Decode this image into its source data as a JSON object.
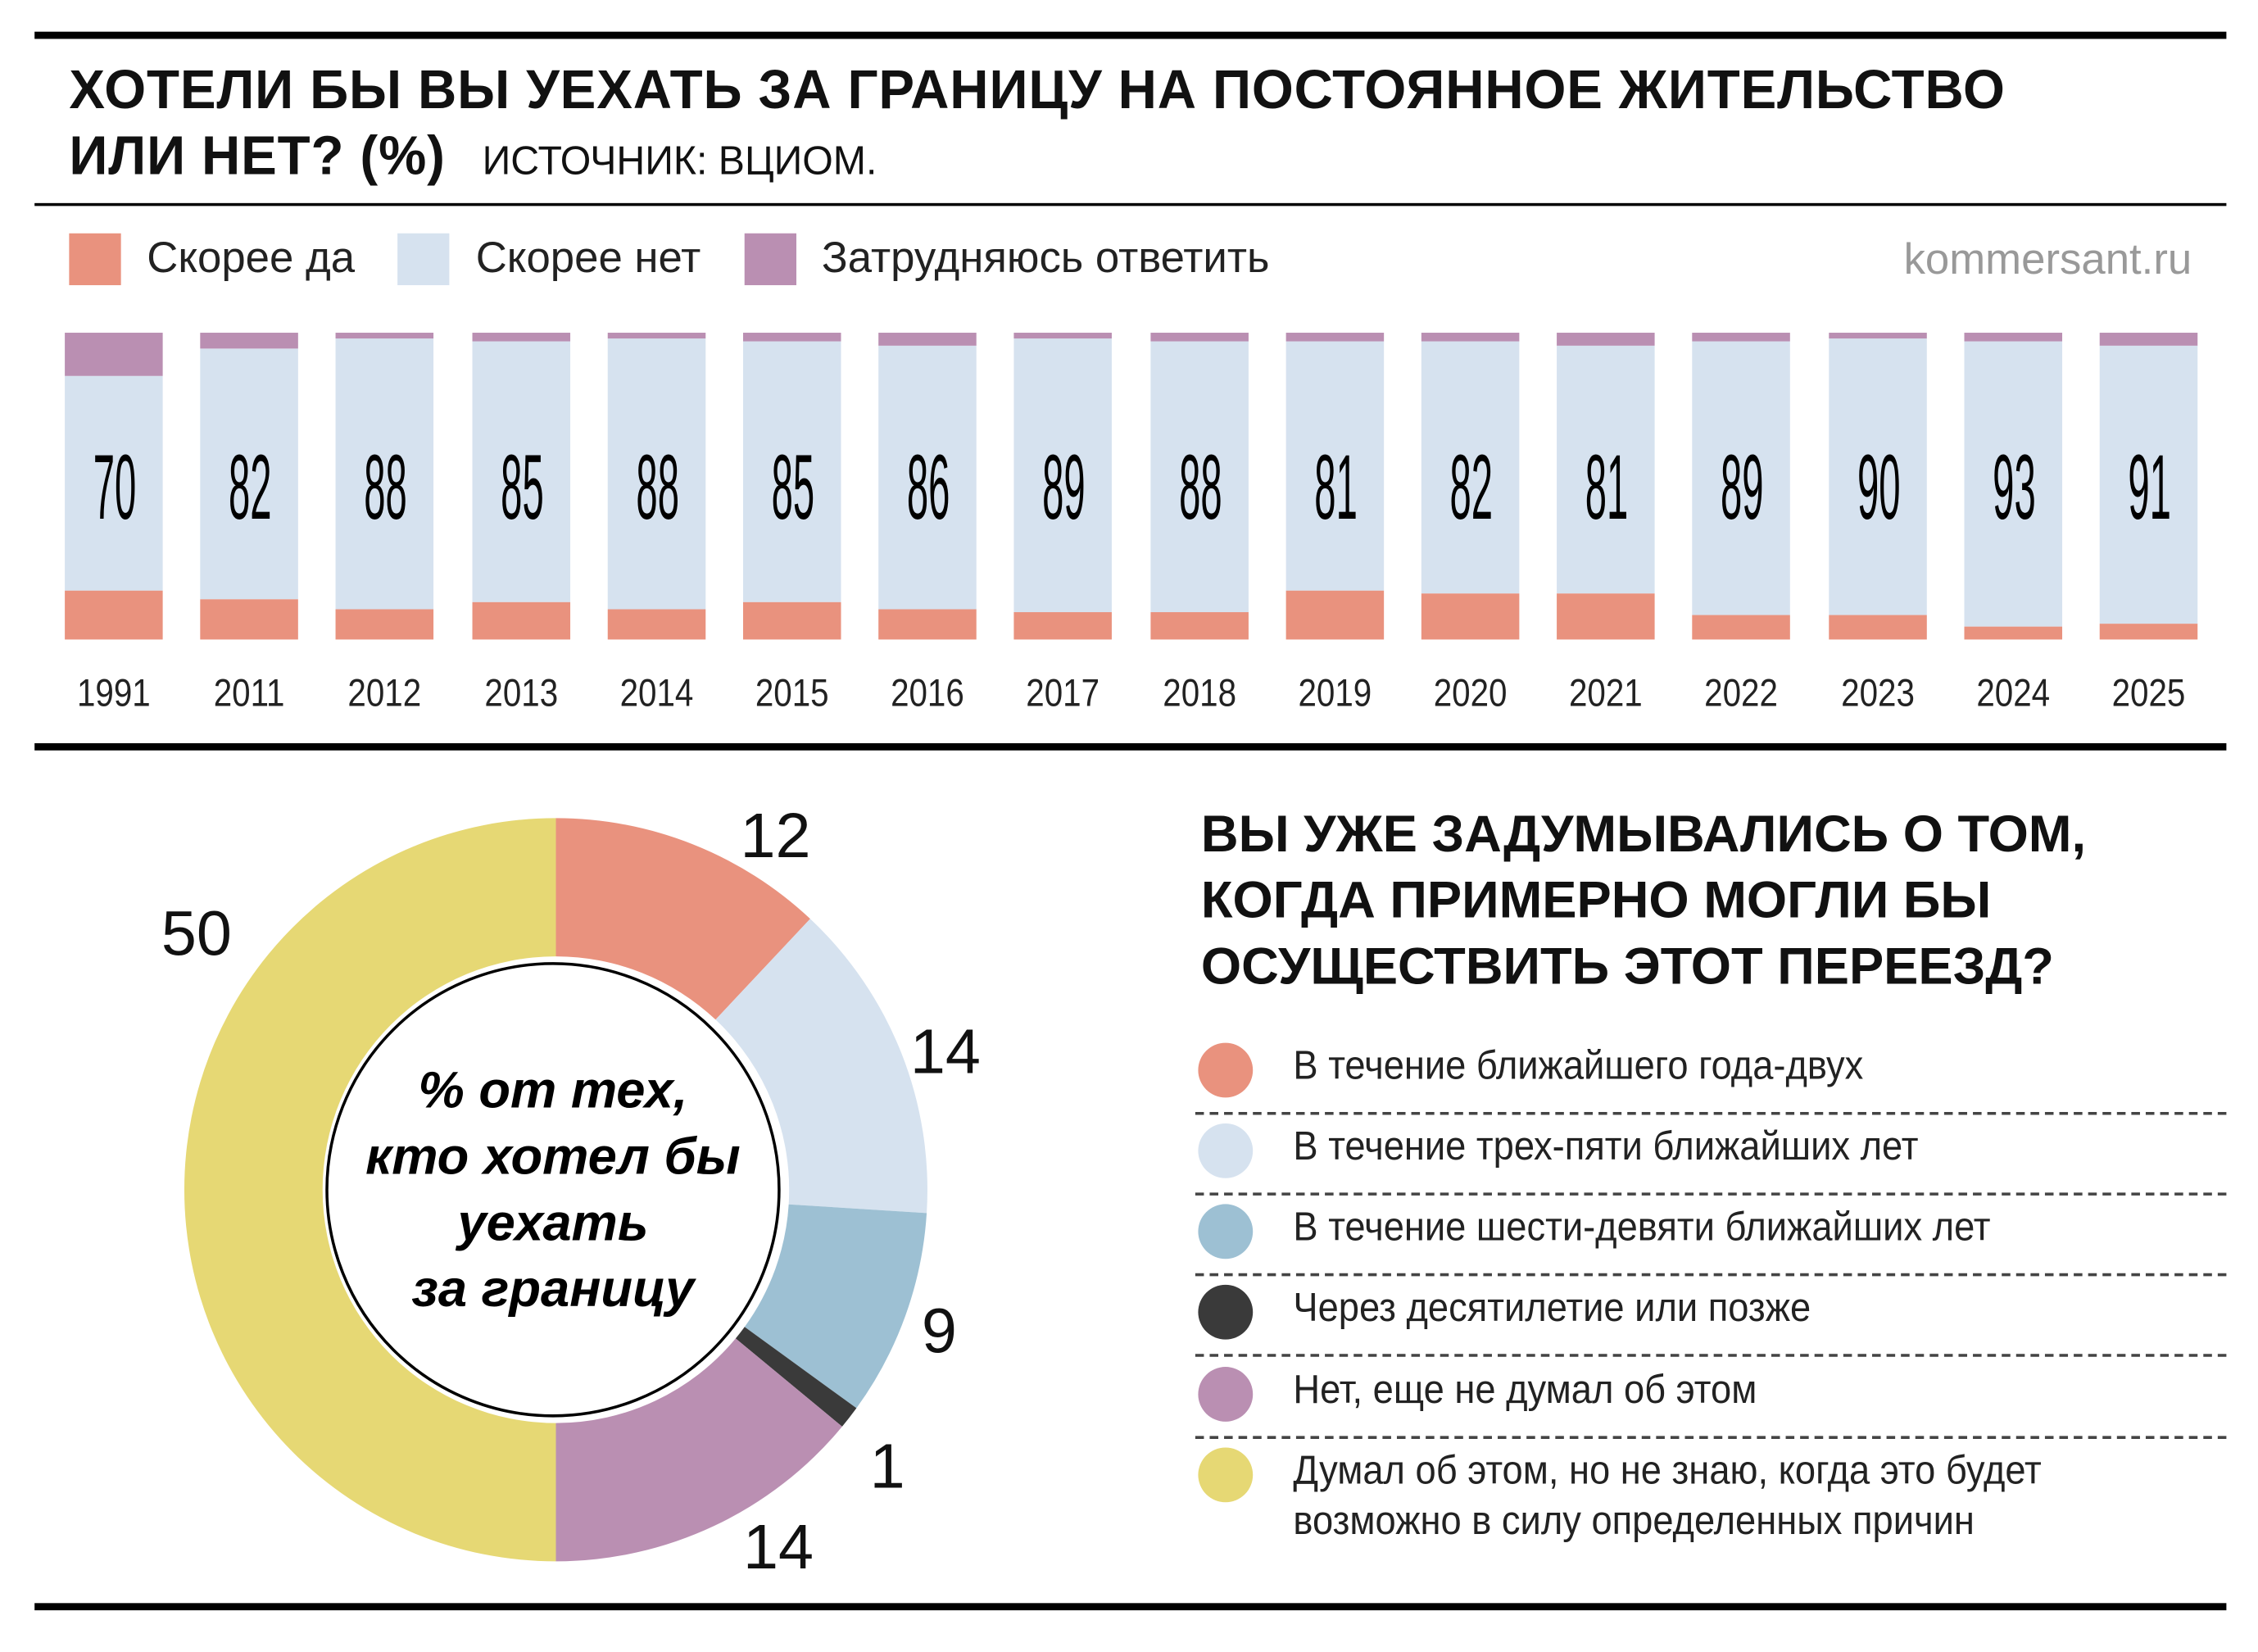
{
  "title_line1": "ХОТЕЛИ БЫ ВЫ УЕХАТЬ ЗА ГРАНИЦУ НА ПОСТОЯННОЕ ЖИТЕЛЬСТВО",
  "title_line2": "ИЛИ НЕТ? (%)",
  "source": "ИСТОЧНИК: ВЦИОМ.",
  "brand": "kommersant.ru",
  "colors": {
    "yes": "#E9927E",
    "no": "#D6E2EF",
    "hard": "#BA8FB2",
    "y1_2": "#E9927E",
    "y3_5": "#D6E2EF",
    "y6_9": "#9DC0D3",
    "later": "#3A3A3A",
    "not_thought": "#BA8FB2",
    "unknown": "#E6D874"
  },
  "chart_data": [
    {
      "type": "bar",
      "stacked": true,
      "title": "Хотели бы вы уехать за границу на постоянное жительство или нет? (%)",
      "legend": [
        "Скорее да",
        "Скорее нет",
        "Затрудняюсь ответить"
      ],
      "categories": [
        "1991",
        "2011",
        "2012",
        "2013",
        "2014",
        "2015",
        "2016",
        "2017",
        "2018",
        "2019",
        "2020",
        "2021",
        "2022",
        "2023",
        "2024",
        "2025"
      ],
      "series": [
        {
          "name": "Скорее да",
          "values": [
            16,
            13,
            10,
            12,
            10,
            12,
            10,
            9,
            9,
            16,
            15,
            15,
            8,
            8,
            4,
            5
          ]
        },
        {
          "name": "Скорее нет",
          "values": [
            70,
            82,
            88,
            85,
            88,
            85,
            86,
            89,
            88,
            81,
            82,
            81,
            89,
            90,
            93,
            91
          ]
        },
        {
          "name": "Затрудняюсь ответить",
          "values": [
            14,
            5,
            2,
            3,
            2,
            3,
            4,
            2,
            3,
            3,
            3,
            4,
            3,
            2,
            3,
            4
          ]
        }
      ],
      "ylim": [
        0,
        100
      ]
    },
    {
      "type": "pie",
      "title": "Вы уже задумывались о том, когда примерно могли бы осуществить этот переезд?",
      "center_label": [
        "% от тех,",
        "кто хотел бы",
        "уехать",
        "за границу"
      ],
      "categories": [
        "В течение ближайшего года-двух",
        "В течение трех-пяти ближайших лет",
        "В течение шести-девяти ближайших лет",
        "Через десятилетие или позже",
        "Нет, еще не думал об этом",
        "Думал об этом, но не знаю, когда это будет возможно в силу определенных причин"
      ],
      "values": [
        12,
        14,
        9,
        1,
        14,
        50
      ],
      "labels": [
        "12",
        "14",
        "9",
        "1",
        "14",
        "50"
      ]
    }
  ],
  "question2": [
    "ВЫ УЖЕ ЗАДУМЫВАЛИСЬ О ТОМ,",
    "КОГДА ПРИМЕРНО МОГЛИ БЫ",
    "ОСУЩЕСТВИТЬ ЭТОТ ПЕРЕЕЗД?"
  ],
  "legend2": [
    "В течение ближайшего года-двух",
    "В течение трех-пяти ближайших лет",
    "В течение шести-девяти ближайших лет",
    "Через десятилетие или позже",
    "Нет, еще не думал об этом",
    "Думал об этом, но не знаю, когда это будет",
    "возможно в силу определенных причин"
  ]
}
